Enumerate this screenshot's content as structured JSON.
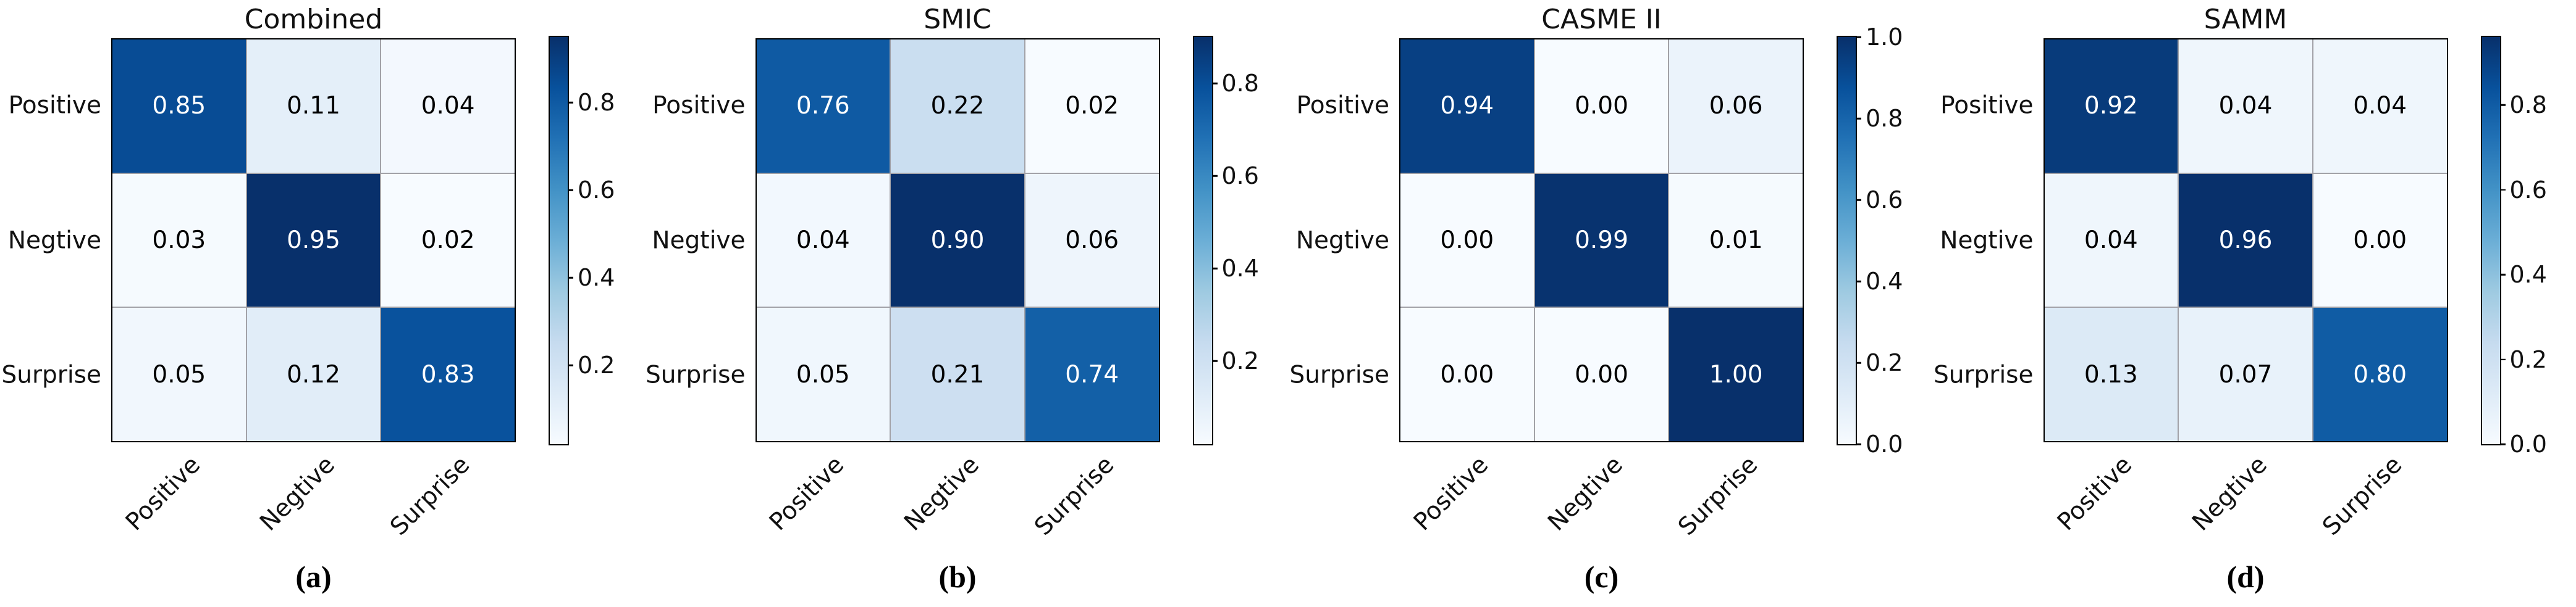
{
  "figure": {
    "background": "#ffffff",
    "colormap": "Blues",
    "colormap_stops": [
      "#f7fbff",
      "#deebf7",
      "#c6dbef",
      "#9ecae1",
      "#6baed6",
      "#4292c6",
      "#2171b5",
      "#08519c",
      "#08306b"
    ],
    "grid_line_color": "#a2a2a8",
    "border_color": "#000000",
    "cell_text_light": "#000000",
    "cell_text_dark": "#ffffff"
  },
  "chart_data": [
    {
      "type": "heatmap",
      "title": "Combined",
      "caption": "(a)",
      "row_labels": [
        "Positive",
        "Negtive",
        "Surprise"
      ],
      "col_labels": [
        "Positive",
        "Negtive",
        "Surprise"
      ],
      "values": [
        [
          0.85,
          0.11,
          0.04
        ],
        [
          0.03,
          0.95,
          0.02
        ],
        [
          0.05,
          0.12,
          0.83
        ]
      ],
      "colorbar_range": [
        0.02,
        0.95
      ],
      "colorbar_ticks": [
        0.8,
        0.6,
        0.4,
        0.2
      ],
      "legend_position": "right"
    },
    {
      "type": "heatmap",
      "title": "SMIC",
      "caption": "(b)",
      "row_labels": [
        "Positive",
        "Negtive",
        "Surprise"
      ],
      "col_labels": [
        "Positive",
        "Negtive",
        "Surprise"
      ],
      "values": [
        [
          0.76,
          0.22,
          0.02
        ],
        [
          0.04,
          0.9,
          0.06
        ],
        [
          0.05,
          0.21,
          0.74
        ]
      ],
      "colorbar_range": [
        0.02,
        0.9
      ],
      "colorbar_ticks": [
        0.8,
        0.6,
        0.4,
        0.2
      ],
      "legend_position": "right"
    },
    {
      "type": "heatmap",
      "title": "CASME II",
      "caption": "(c)",
      "row_labels": [
        "Positive",
        "Negtive",
        "Surprise"
      ],
      "col_labels": [
        "Positive",
        "Negtive",
        "Surprise"
      ],
      "values": [
        [
          0.94,
          0.0,
          0.06
        ],
        [
          0.0,
          0.99,
          0.01
        ],
        [
          0.0,
          0.0,
          1.0
        ]
      ],
      "colorbar_range": [
        0.0,
        1.0
      ],
      "colorbar_ticks": [
        1.0,
        0.8,
        0.6,
        0.4,
        0.2,
        0.0
      ],
      "legend_position": "right"
    },
    {
      "type": "heatmap",
      "title": "SAMM",
      "caption": "(d)",
      "row_labels": [
        "Positive",
        "Negtive",
        "Surprise"
      ],
      "col_labels": [
        "Positive",
        "Negtive",
        "Surprise"
      ],
      "values": [
        [
          0.92,
          0.04,
          0.04
        ],
        [
          0.04,
          0.96,
          0.0
        ],
        [
          0.13,
          0.07,
          0.8
        ]
      ],
      "colorbar_range": [
        0.0,
        0.96
      ],
      "colorbar_ticks": [
        0.8,
        0.6,
        0.4,
        0.2,
        0.0
      ],
      "legend_position": "right"
    }
  ]
}
